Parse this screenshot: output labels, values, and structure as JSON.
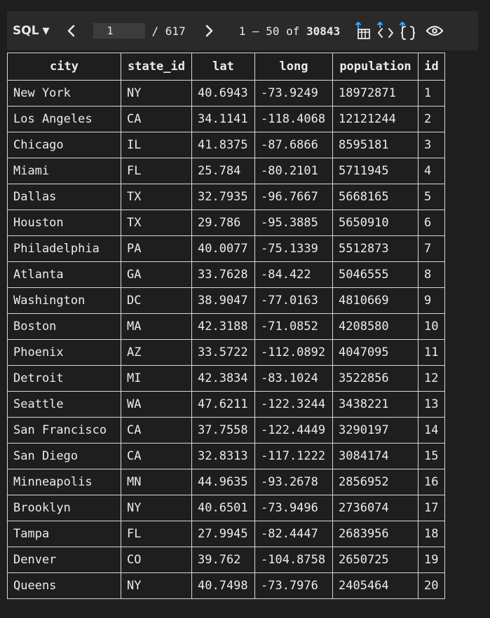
{
  "toolbar": {
    "language": "SQL",
    "current_page": "1",
    "total_pages": "/ 617",
    "range_text": "1 – 50 of ",
    "total_rows": "30843"
  },
  "icons": [
    "sql-dropdown-caret",
    "chevron-left-icon",
    "chevron-right-icon",
    "export-table-icon",
    "code-format-icon",
    "json-braces-icon",
    "eye-icon"
  ],
  "colors": {
    "background": "#1e1e1e",
    "toolbar": "#2a2a2a",
    "accent_blue": "#3ea6ff",
    "grid": "#d8d8d8"
  },
  "table": {
    "columns": [
      "city",
      "state_id",
      "lat",
      "long",
      "population",
      "id"
    ],
    "rows": [
      [
        "New York",
        "NY",
        "40.6943",
        "-73.9249",
        "18972871",
        "1"
      ],
      [
        "Los Angeles",
        "CA",
        "34.1141",
        "-118.4068",
        "12121244",
        "2"
      ],
      [
        "Chicago",
        "IL",
        "41.8375",
        "-87.6866",
        "8595181",
        "3"
      ],
      [
        "Miami",
        "FL",
        "25.784",
        "-80.2101",
        "5711945",
        "4"
      ],
      [
        "Dallas",
        "TX",
        "32.7935",
        "-96.7667",
        "5668165",
        "5"
      ],
      [
        "Houston",
        "TX",
        "29.786",
        "-95.3885",
        "5650910",
        "6"
      ],
      [
        "Philadelphia",
        "PA",
        "40.0077",
        "-75.1339",
        "5512873",
        "7"
      ],
      [
        "Atlanta",
        "GA",
        "33.7628",
        "-84.422",
        "5046555",
        "8"
      ],
      [
        "Washington",
        "DC",
        "38.9047",
        "-77.0163",
        "4810669",
        "9"
      ],
      [
        "Boston",
        "MA",
        "42.3188",
        "-71.0852",
        "4208580",
        "10"
      ],
      [
        "Phoenix",
        "AZ",
        "33.5722",
        "-112.0892",
        "4047095",
        "11"
      ],
      [
        "Detroit",
        "MI",
        "42.3834",
        "-83.1024",
        "3522856",
        "12"
      ],
      [
        "Seattle",
        "WA",
        "47.6211",
        "-122.3244",
        "3438221",
        "13"
      ],
      [
        "San Francisco",
        "CA",
        "37.7558",
        "-122.4449",
        "3290197",
        "14"
      ],
      [
        "San Diego",
        "CA",
        "32.8313",
        "-117.1222",
        "3084174",
        "15"
      ],
      [
        "Minneapolis",
        "MN",
        "44.9635",
        "-93.2678",
        "2856952",
        "16"
      ],
      [
        "Brooklyn",
        "NY",
        "40.6501",
        "-73.9496",
        "2736074",
        "17"
      ],
      [
        "Tampa",
        "FL",
        "27.9945",
        "-82.4447",
        "2683956",
        "18"
      ],
      [
        "Denver",
        "CO",
        "39.762",
        "-104.8758",
        "2650725",
        "19"
      ],
      [
        "Queens",
        "NY",
        "40.7498",
        "-73.7976",
        "2405464",
        "20"
      ]
    ]
  }
}
